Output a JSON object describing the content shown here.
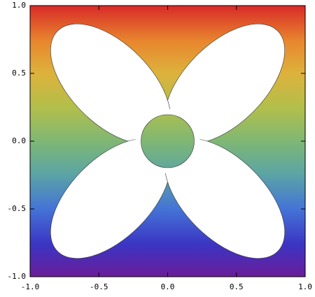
{
  "chart_data": {
    "type": "region",
    "xlim": [
      -1,
      1
    ],
    "ylim": [
      -1,
      1
    ],
    "xticks": [
      {
        "value": -1,
        "label": "-1.0"
      },
      {
        "value": -0.5,
        "label": "-0.5"
      },
      {
        "value": 0,
        "label": "0.0"
      },
      {
        "value": 0.5,
        "label": "0.5"
      },
      {
        "value": 1,
        "label": "1.0"
      }
    ],
    "yticks": [
      {
        "value": -1,
        "label": "-1.0"
      },
      {
        "value": -0.5,
        "label": "-0.5"
      },
      {
        "value": 0,
        "label": "0.0"
      },
      {
        "value": 0.5,
        "label": "0.5"
      },
      {
        "value": 1,
        "label": "1.0"
      }
    ]
  }
}
